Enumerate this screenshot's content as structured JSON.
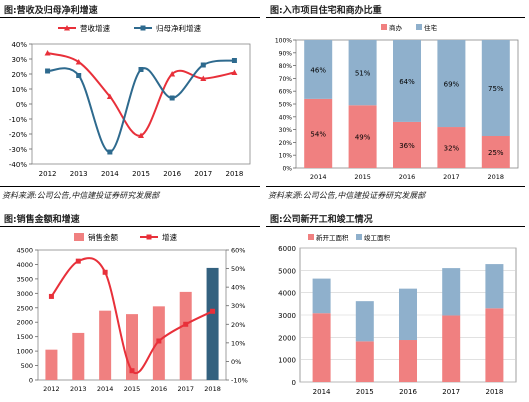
{
  "panels": {
    "tl": {
      "title": "图:营收及归母净利增速",
      "source": "资料来源:公司公告,中信建投证券研究发展部"
    },
    "tr": {
      "title": "图:入市项目住宅和商办比重",
      "source": "资料来源:公司公告,中信建投证券研究发展部"
    },
    "bl": {
      "title": "图:销售金额和增速"
    },
    "br": {
      "title": "图:公司新开工和竣工情况"
    }
  },
  "colors": {
    "red": "#e8303a",
    "blue": "#2e6a8e",
    "pink": "#f08080",
    "grey_blue": "#8fb0cc",
    "dark_bar": "#33617f"
  },
  "chart_data": [
    {
      "id": "revenue_profit_growth",
      "type": "line",
      "x": [
        "2012",
        "2013",
        "2014",
        "2015",
        "2016",
        "2017",
        "2018"
      ],
      "series": [
        {
          "name": "营收增速",
          "values": [
            34,
            28,
            5,
            -21,
            20,
            17,
            21
          ]
        },
        {
          "name": "归母净利增速",
          "values": [
            22,
            19,
            -32,
            23,
            4,
            26,
            29
          ]
        }
      ],
      "ylim": [
        -40,
        40
      ],
      "yticks": [
        "-40%",
        "-30%",
        "-20%",
        "-10%",
        "0%",
        "10%",
        "20%",
        "30%",
        "40%"
      ],
      "legend": "top"
    },
    {
      "id": "residential_commercial_share",
      "type": "bar",
      "stacked": true,
      "categories": [
        "2014",
        "2015",
        "2016",
        "2017",
        "2018"
      ],
      "series": [
        {
          "name": "商办",
          "values": [
            54,
            49,
            36,
            32,
            25
          ],
          "labels": [
            "54%",
            "49%",
            "36%",
            "32%",
            "25%"
          ]
        },
        {
          "name": "住宅",
          "values": [
            46,
            51,
            64,
            69,
            75
          ],
          "labels": [
            "46%",
            "51%",
            "64%",
            "69%",
            "75%"
          ]
        }
      ],
      "ylim": [
        0,
        100
      ],
      "yticks": [
        "0%",
        "10%",
        "20%",
        "30%",
        "40%",
        "50%",
        "60%",
        "70%",
        "80%",
        "90%",
        "100%"
      ],
      "legend": "top-center"
    },
    {
      "id": "sales_amount_growth",
      "type": "bar",
      "categories": [
        "2012",
        "2013",
        "2014",
        "2015",
        "2016",
        "2017",
        "2018"
      ],
      "series": [
        {
          "name": "销售金额",
          "axis": "left",
          "values": [
            1050,
            1630,
            2400,
            2280,
            2550,
            3050,
            3880
          ]
        },
        {
          "name": "增速",
          "type": "line",
          "axis": "right",
          "values": [
            35,
            54,
            48,
            -5,
            11,
            20,
            27
          ]
        }
      ],
      "ylim_left": [
        0,
        4500
      ],
      "ylim_right": [
        -10,
        60
      ],
      "yticks_left": [
        "0",
        "500",
        "1000",
        "1500",
        "2000",
        "2500",
        "3000",
        "3500",
        "4000",
        "4500"
      ],
      "yticks_right": [
        "-10%",
        "0%",
        "10%",
        "20%",
        "30%",
        "40%",
        "50%",
        "60%"
      ],
      "legend": "top"
    },
    {
      "id": "new_starts_completions",
      "type": "bar",
      "stacked": true,
      "categories": [
        "2014",
        "2015",
        "2016",
        "2017",
        "2018"
      ],
      "series": [
        {
          "name": "新开工面积",
          "values": [
            3080,
            1820,
            1880,
            2980,
            3300
          ]
        },
        {
          "name": "竣工面积",
          "values": [
            1550,
            1800,
            2300,
            2120,
            1980
          ]
        }
      ],
      "ylim": [
        0,
        6000
      ],
      "yticks": [
        "0",
        "1000",
        "2000",
        "3000",
        "4000",
        "5000",
        "6000"
      ],
      "legend": "top-left"
    }
  ]
}
